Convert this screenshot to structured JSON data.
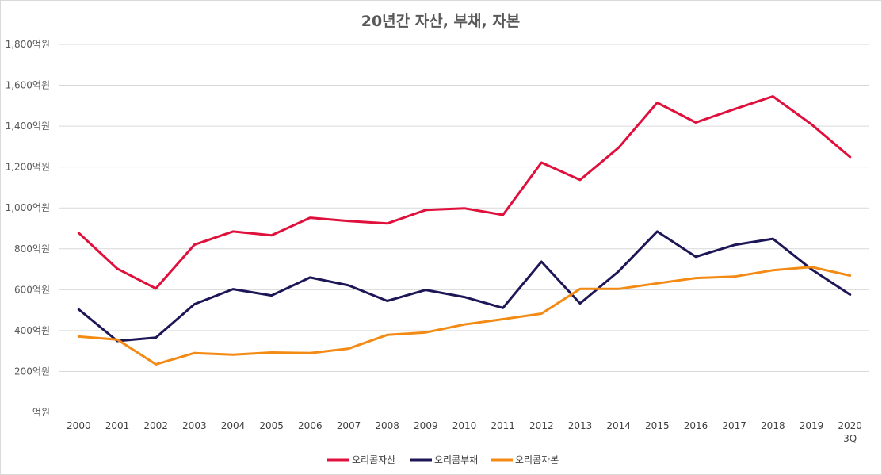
{
  "chart_data": {
    "type": "line",
    "title": "20년간 자산, 부채, 자본",
    "xlabel": "",
    "ylabel": "",
    "x": [
      "2000",
      "2001",
      "2002",
      "2003",
      "2004",
      "2005",
      "2006",
      "2007",
      "2008",
      "2009",
      "2010",
      "2011",
      "2012",
      "2013",
      "2014",
      "2015",
      "2016",
      "2017",
      "2018",
      "2019",
      "2020\n3Q"
    ],
    "y_ticks": [
      "억원",
      "200억원",
      "400억원",
      "600억원",
      "800억원",
      "1,000억원",
      "1,200억원",
      "1,400억원",
      "1,600억원",
      "1,800억원"
    ],
    "ylim": [
      0,
      1800
    ],
    "grid": true,
    "legend_position": "bottom",
    "series": [
      {
        "name": "오리콤자산",
        "color": "#e0103c",
        "values": [
          878,
          703,
          606,
          820,
          885,
          866,
          952,
          936,
          924,
          990,
          998,
          966,
          1222,
          1137,
          1295,
          1515,
          1418,
          1483,
          1546,
          1409,
          1249
        ]
      },
      {
        "name": "오리콤부채",
        "color": "#1e1757",
        "values": [
          504,
          349,
          366,
          529,
          603,
          572,
          660,
          621,
          545,
          599,
          564,
          511,
          737,
          533,
          690,
          885,
          761,
          819,
          849,
          700,
          576
        ]
      },
      {
        "name": "오리콤자본",
        "color": "#f28a14",
        "values": [
          371,
          356,
          235,
          290,
          282,
          293,
          290,
          312,
          379,
          391,
          430,
          456,
          483,
          604,
          604,
          631,
          657,
          664,
          695,
          711,
          669
        ]
      }
    ]
  }
}
